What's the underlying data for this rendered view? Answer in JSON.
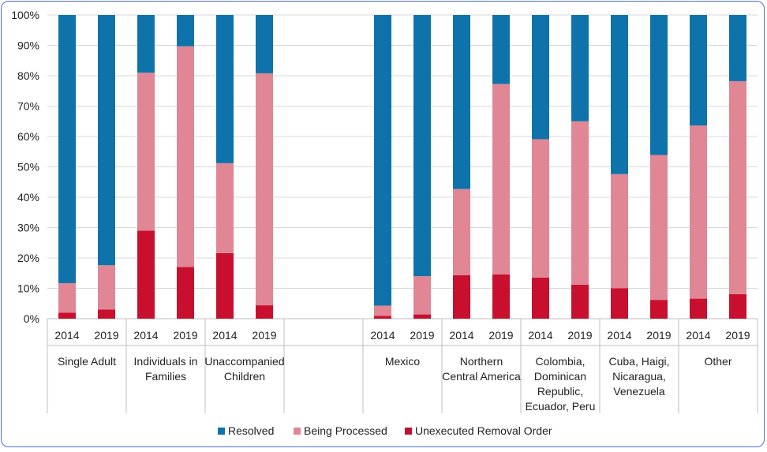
{
  "chart_data": {
    "type": "bar",
    "stacked": true,
    "percent": true,
    "ylim": [
      0,
      100
    ],
    "yticks": [
      "0%",
      "10%",
      "20%",
      "30%",
      "40%",
      "50%",
      "60%",
      "70%",
      "80%",
      "90%",
      "100%"
    ],
    "legend_position": "bottom",
    "groups": [
      {
        "label": "Single Adult",
        "lines": [
          "Single Adult"
        ],
        "bars": [
          {
            "year": "2014",
            "unexecuted": 2,
            "processing": 9.7,
            "resolved": 88.3
          },
          {
            "year": "2019",
            "unexecuted": 3,
            "processing": 14.6,
            "resolved": 82.4
          }
        ]
      },
      {
        "label": "Individuals in Families",
        "lines": [
          "Individuals in",
          "Families"
        ],
        "bars": [
          {
            "year": "2014",
            "unexecuted": 29,
            "processing": 52,
            "resolved": 19
          },
          {
            "year": "2019",
            "unexecuted": 17,
            "processing": 72.7,
            "resolved": 10.3
          }
        ]
      },
      {
        "label": "Unaccompanied Children",
        "lines": [
          "Unaccompanied",
          "Children"
        ],
        "bars": [
          {
            "year": "2014",
            "unexecuted": 21.6,
            "processing": 29.6,
            "resolved": 48.8
          },
          {
            "year": "2019",
            "unexecuted": 4.4,
            "processing": 76.4,
            "resolved": 19.2
          }
        ]
      },
      {
        "label": "",
        "lines": [],
        "bars": []
      },
      {
        "label": "Mexico",
        "lines": [
          "Mexico"
        ],
        "bars": [
          {
            "year": "2014",
            "unexecuted": 0.9,
            "processing": 3.4,
            "resolved": 95.7
          },
          {
            "year": "2019",
            "unexecuted": 1.4,
            "processing": 12.6,
            "resolved": 86
          }
        ]
      },
      {
        "label": "Northern Central America",
        "lines": [
          "Northern",
          "Central America"
        ],
        "bars": [
          {
            "year": "2014",
            "unexecuted": 14.3,
            "processing": 28.4,
            "resolved": 57.3
          },
          {
            "year": "2019",
            "unexecuted": 14.6,
            "processing": 62.7,
            "resolved": 22.7
          }
        ]
      },
      {
        "label": "Colombia, Dominican Republic, Ecuador, Peru",
        "lines": [
          "Colombia,",
          "Dominican",
          "Republic,",
          "Ecuador, Peru"
        ],
        "bars": [
          {
            "year": "2014",
            "unexecuted": 13.5,
            "processing": 45.6,
            "resolved": 40.9
          },
          {
            "year": "2019",
            "unexecuted": 11.2,
            "processing": 53.8,
            "resolved": 35
          }
        ]
      },
      {
        "label": "Cuba, Haigi, Nicaragua, Venezuela",
        "lines": [
          "Cuba, Haigi,",
          "Nicaragua,",
          "Venezuela"
        ],
        "bars": [
          {
            "year": "2014",
            "unexecuted": 10,
            "processing": 37.6,
            "resolved": 52.4
          },
          {
            "year": "2019",
            "unexecuted": 6.2,
            "processing": 47.7,
            "resolved": 46.1
          }
        ]
      },
      {
        "label": "Other",
        "lines": [
          "Other"
        ],
        "bars": [
          {
            "year": "2014",
            "unexecuted": 6.6,
            "processing": 57,
            "resolved": 36.4
          },
          {
            "year": "2019",
            "unexecuted": 8.1,
            "processing": 70.1,
            "resolved": 21.8
          }
        ]
      }
    ],
    "series": [
      {
        "key": "resolved",
        "name": "Resolved",
        "color": "#0d73aa"
      },
      {
        "key": "processing",
        "name": "Being Processed",
        "color": "#e08694"
      },
      {
        "key": "unexecuted",
        "name": "Unexecuted Removal Order",
        "color": "#c8102e"
      }
    ]
  }
}
